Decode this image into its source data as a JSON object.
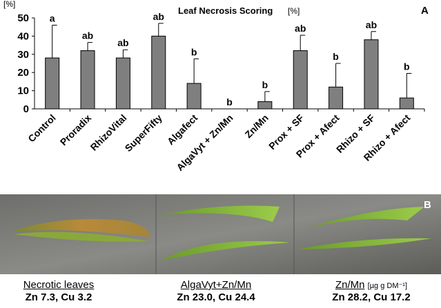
{
  "chart_data": {
    "type": "bar",
    "title": "Leaf Necrosis Scoring",
    "ylabel": "[%]",
    "panel_label": "A",
    "categories": [
      "Control",
      "Proradix",
      "RhizoVital",
      "SuperFifty",
      "Algafect",
      "AlgaVyt + Zn/Mn",
      "Zn/Mn",
      "Prox + SF",
      "Prox + Afect",
      "Rhizo + SF",
      "Rhizo + Afect"
    ],
    "values": [
      28,
      32,
      28,
      40,
      14,
      0,
      4,
      32,
      12,
      38,
      6
    ],
    "errors": [
      18,
      4.5,
      4.5,
      7,
      13.5,
      0,
      5.5,
      8.5,
      13,
      4.5,
      13.5
    ],
    "annotations": [
      "a",
      "ab",
      "ab",
      "ab",
      "b",
      "b",
      "b",
      "ab",
      "b",
      "ab",
      "b"
    ],
    "color": "#7f7f7f",
    "ylim": [
      0,
      50
    ],
    "yticks": [
      0,
      10,
      20,
      30,
      40,
      50
    ]
  },
  "panel_b": {
    "label": "B",
    "captions": [
      {
        "title": "Necrotic leaves",
        "values": "Zn 7.3, Cu 3.2"
      },
      {
        "title": "AlgaVyt+Zn/Mn",
        "values": "Zn 23.0, Cu 24.4"
      },
      {
        "title": "Zn/Mn",
        "unit": "[µg g DM⁻¹]",
        "values": "Zn 28.2, Cu 17.2"
      }
    ]
  }
}
